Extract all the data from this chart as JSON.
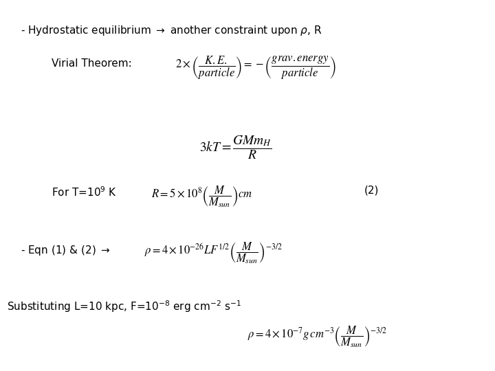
{
  "background_color": "#ffffff",
  "line1": "- Hydrostatic equilibrium $\\rightarrow$ another constraint upon $\\rho$, R",
  "line2_label": "Virial Theorem:",
  "line2_eq": "$2\\times\\left(\\dfrac{K.E.}{particle}\\right)=-\\left(\\dfrac{grav.energy}{particle}\\right)$",
  "line3_eq": "$3kT=\\dfrac{GMm_H}{R}$",
  "line4_label": "For T=10$^9$ K",
  "line4_eq": "$R=5\\times10^8\\left(\\dfrac{M}{M_{sun}}\\right)cm$",
  "line4_tag": "(2)",
  "line5_label": "- Eqn (1) & (2) $\\rightarrow$",
  "line5_eq": "$\\rho=4\\times10^{-26}LF^{1/2}\\left(\\dfrac{M}{M_{sun}}\\right)^{-3/2}$",
  "line6_label": "Substituting L=10 kpc, F=10$^{-8}$ erg cm$^{-2}$ s$^{-1}$",
  "line6_eq": "$\\rho=4\\times10^{-7}g\\,cm^{-3}\\left(\\dfrac{M}{M_{sun}}\\right)^{-3/2}$",
  "fs_text": 11,
  "fs_eq": 12,
  "fs_eq_large": 14
}
